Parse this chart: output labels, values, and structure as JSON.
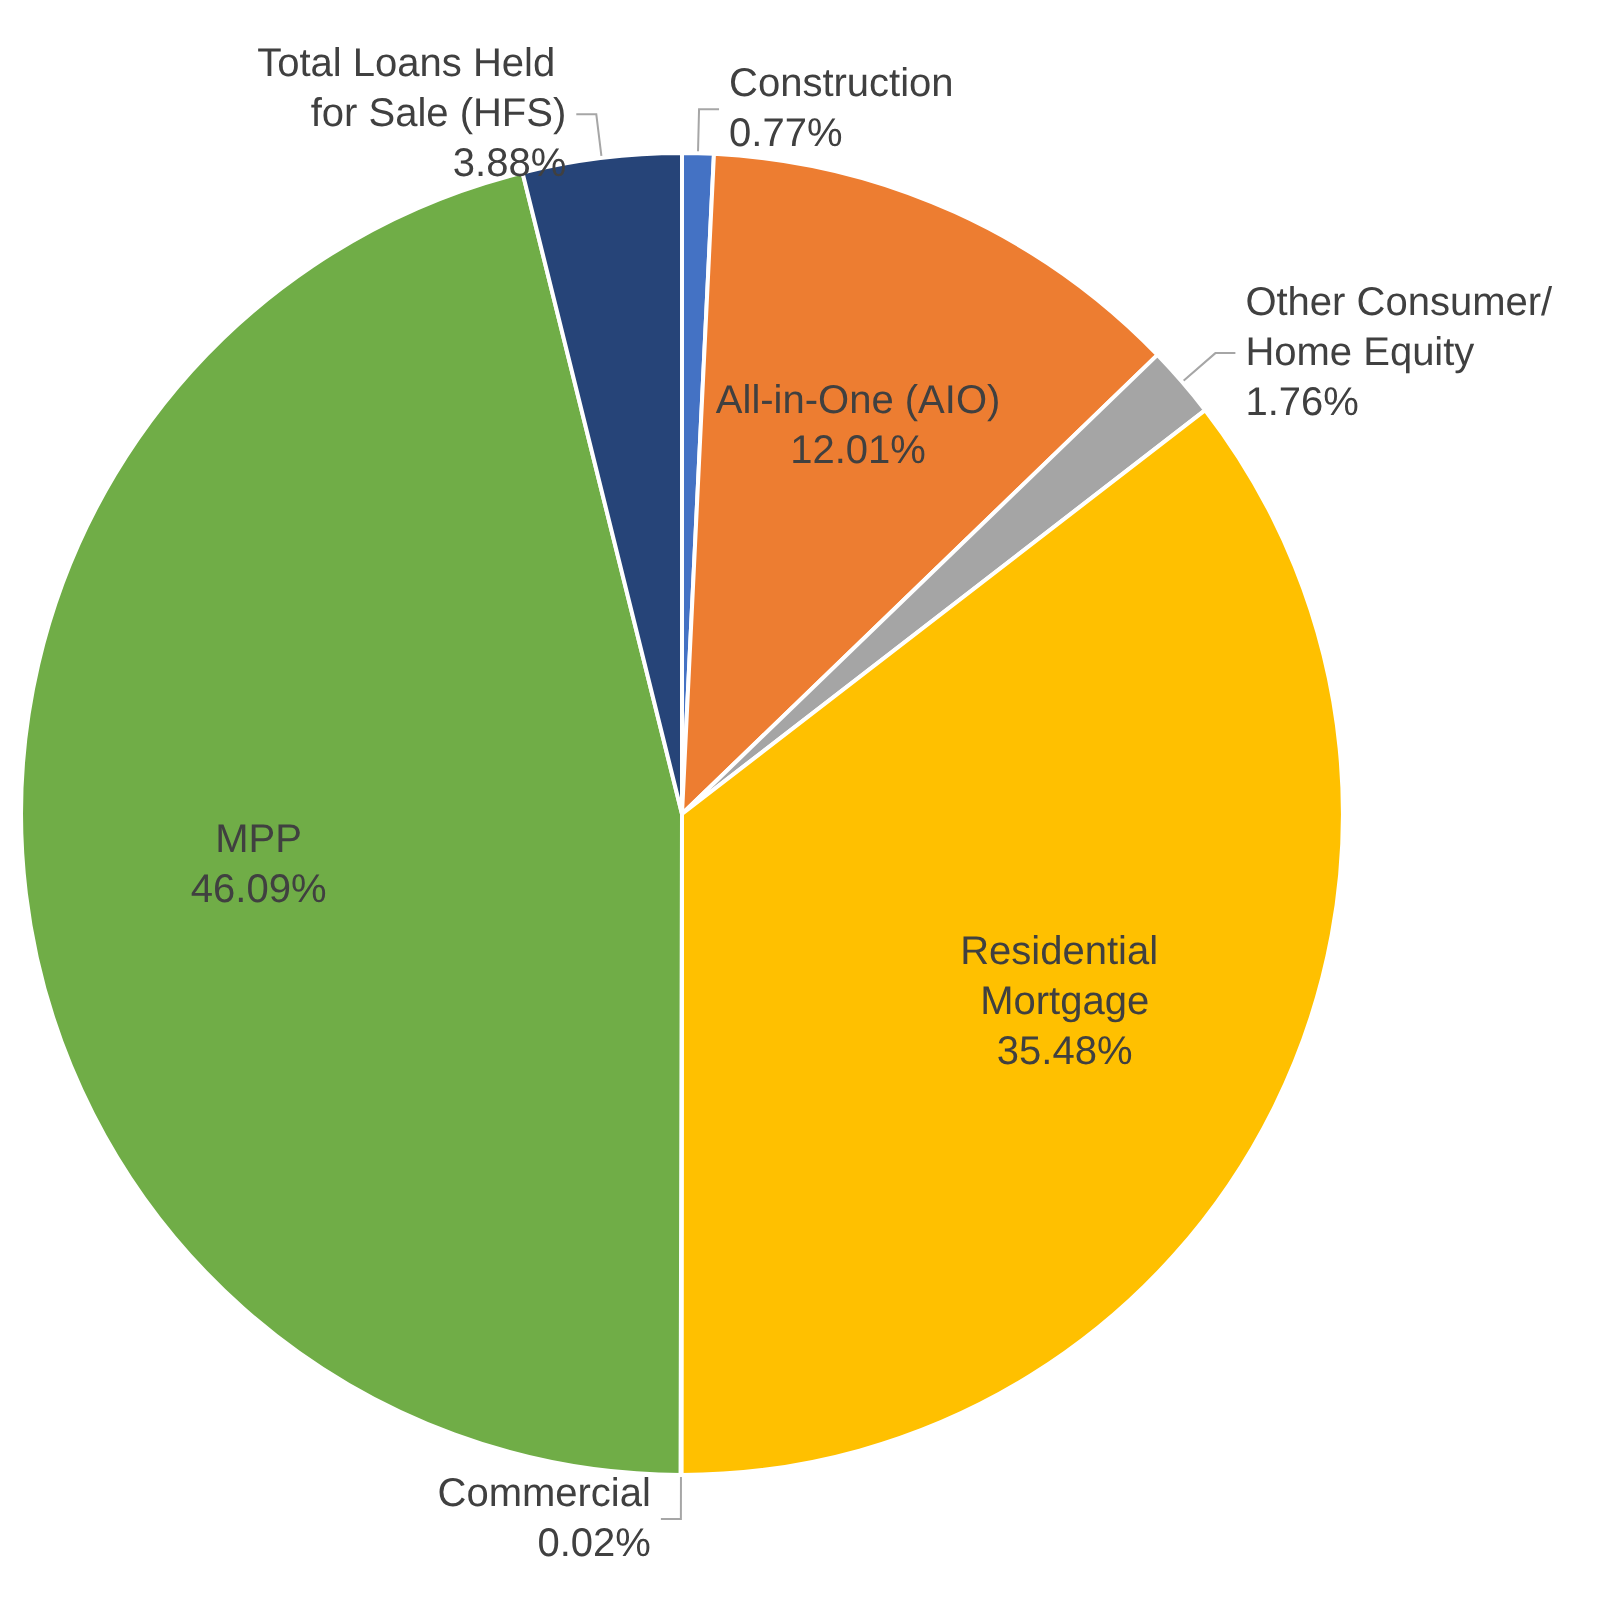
{
  "chart_data": {
    "type": "pie",
    "categories": [
      "Construction",
      "All-in-One (AIO)",
      "Other Consumer/Home Equity",
      "Residential Mortgage",
      "Commercial",
      "MPP",
      "Total Loans Held for Sale (HFS)"
    ],
    "values": [
      0.77,
      12.01,
      1.76,
      35.48,
      0.02,
      46.09,
      3.88
    ],
    "colors": [
      "#4472c4",
      "#ed7d31",
      "#a5a5a5",
      "#ffc000",
      "#5b9bd5",
      "#70ad47",
      "#264478"
    ],
    "value_labels": [
      "0.77%",
      "12.01%",
      "1.76%",
      "35.48%",
      "0.02%",
      "46.09%",
      "3.88%"
    ],
    "legend": false
  }
}
